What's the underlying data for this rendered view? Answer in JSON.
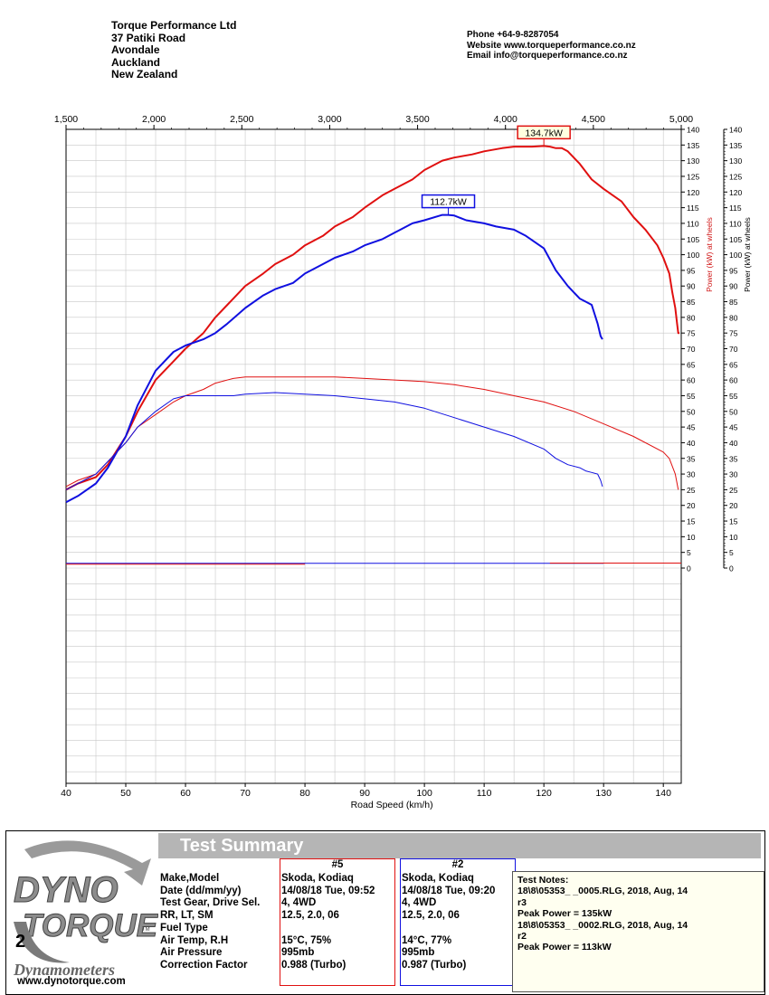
{
  "header": {
    "company": [
      "Torque Performance Ltd",
      "37 Patiki Road",
      "Avondale",
      "Auckland",
      "New Zealand"
    ],
    "contact": [
      "Phone +64-9-8287054",
      "Website  www.torqueperformance.co.nz",
      "Email  info@torqueperformance.co.nz"
    ]
  },
  "chart_data": {
    "type": "line",
    "title": "",
    "xlabel": "Road Speed (km/h)",
    "xlim": [
      40,
      143
    ],
    "x_ticks": [
      "40",
      "50",
      "60",
      "70",
      "80",
      "90",
      "100",
      "110",
      "120",
      "130",
      "140"
    ],
    "top_axis": {
      "ticks": [
        "1,500",
        "2,000",
        "2,500",
        "3,000",
        "3,500",
        "4,000",
        "4,500",
        "5,000"
      ],
      "range": [
        1500,
        5000
      ]
    },
    "y_left": {
      "ylabel": "Power (kW) at wheels",
      "ylim": [
        0,
        140
      ],
      "color": "#d01818"
    },
    "y_right": {
      "ylabel": "Power (kW) at wheels",
      "ylim": [
        0,
        140
      ]
    },
    "y_ticks": [
      "0",
      "5",
      "10",
      "15",
      "20",
      "25",
      "30",
      "35",
      "40",
      "45",
      "50",
      "55",
      "60",
      "65",
      "70",
      "75",
      "80",
      "85",
      "90",
      "95",
      "100",
      "105",
      "110",
      "115",
      "120",
      "125",
      "130",
      "135",
      "140"
    ],
    "grid": true,
    "series": [
      {
        "color": "#e01010",
        "width": 2,
        "x": [
          40,
          42,
          45,
          47,
          50,
          52,
          55,
          58,
          60,
          63,
          65,
          67,
          70,
          73,
          75,
          78,
          80,
          83,
          85,
          88,
          90,
          93,
          95,
          98,
          100,
          103,
          105,
          108,
          110,
          113,
          115,
          118,
          120,
          121,
          122,
          123,
          124,
          126,
          128,
          130,
          133,
          135,
          137,
          139,
          140,
          141,
          141.5,
          142,
          142.3,
          142.5,
          142.7
        ],
        "y": [
          25,
          27,
          29,
          33,
          42,
          50,
          60,
          66,
          70,
          75,
          80,
          84,
          90,
          94,
          97,
          100,
          103,
          106,
          109,
          112,
          115,
          119,
          121,
          124,
          127,
          130,
          131,
          132,
          133,
          134,
          134.5,
          134.5,
          134.7,
          134.5,
          134,
          134,
          133,
          129,
          124,
          121,
          117,
          112,
          108,
          103,
          99,
          94,
          88,
          83,
          78,
          75,
          75
        ]
      },
      {
        "color": "#1010e0",
        "width": 2,
        "x": [
          40,
          42,
          45,
          47,
          50,
          52,
          55,
          58,
          60,
          63,
          65,
          67,
          70,
          73,
          75,
          78,
          80,
          83,
          85,
          88,
          90,
          93,
          95,
          98,
          100,
          103,
          104,
          105,
          107,
          110,
          112,
          115,
          117,
          120,
          122,
          124,
          126,
          127,
          128,
          129,
          129.5,
          129.8
        ],
        "y": [
          21,
          23,
          27,
          32,
          42,
          52,
          63,
          69,
          71,
          73,
          75,
          78,
          83,
          87,
          89,
          91,
          94,
          97,
          99,
          101,
          103,
          105,
          107,
          110,
          111,
          112.7,
          112.7,
          112.5,
          111,
          110,
          109,
          108,
          106,
          102,
          95,
          90,
          86,
          85,
          84,
          78,
          74,
          73
        ]
      },
      {
        "color": "#e01010",
        "width": 1,
        "x": [
          40,
          42,
          45,
          48,
          50,
          52,
          55,
          58,
          60,
          63,
          65,
          68,
          70,
          75,
          80,
          85,
          90,
          95,
          100,
          105,
          110,
          115,
          120,
          125,
          130,
          135,
          140,
          141,
          142,
          142.5
        ],
        "y": [
          26,
          28,
          30,
          36,
          40,
          45,
          49,
          53,
          55,
          57,
          59,
          60.5,
          61,
          61,
          61,
          61,
          60.5,
          60,
          59.5,
          58.5,
          57,
          55,
          53,
          50,
          46,
          42,
          37,
          35,
          30,
          25
        ]
      },
      {
        "color": "#1010e0",
        "width": 1,
        "x": [
          40,
          42,
          45,
          48,
          50,
          52,
          55,
          58,
          60,
          63,
          65,
          68,
          70,
          75,
          80,
          85,
          90,
          95,
          100,
          105,
          110,
          115,
          120,
          122,
          124,
          126,
          127,
          128,
          129,
          129.5,
          129.8
        ],
        "y": [
          25,
          27,
          30,
          36,
          40,
          45,
          50,
          54,
          55,
          55,
          55,
          55,
          55.5,
          56,
          55.5,
          55,
          54,
          53,
          51,
          48,
          45,
          42,
          38,
          35,
          33,
          32,
          31,
          30.5,
          30,
          28,
          26
        ]
      },
      {
        "color": "#1010e0",
        "width": 1,
        "x": [
          40,
          130
        ],
        "y": [
          1.5,
          1.5
        ]
      },
      {
        "color": "#e01010",
        "width": 1,
        "x": [
          40,
          80
        ],
        "y": [
          1.2,
          1.2
        ]
      },
      {
        "color": "#e01010",
        "width": 1,
        "x": [
          121,
          143
        ],
        "y": [
          1.6,
          1.6
        ]
      }
    ],
    "annotations": [
      {
        "text": "134.7kW",
        "x": 120,
        "y": 134.7,
        "color": "#e01010",
        "background": "#ffffe0"
      },
      {
        "text": "112.7kW",
        "x": 104,
        "y": 112.7,
        "color": "#1010e0",
        "background": "#ffffff"
      }
    ]
  },
  "summary": {
    "title": "Test Summary",
    "labels": [
      "Make,Model",
      "Date (dd/mm/yy)",
      "Test Gear, Drive Sel.",
      "RR, LT, SM",
      "Fuel Type",
      "Air Temp, R.H",
      "Air Pressure",
      "Correction Factor"
    ],
    "runs": [
      {
        "header": "#5",
        "color": "#e01010",
        "values": [
          "Skoda, Kodiaq",
          "14/08/18 Tue, 09:52",
          "4, 4WD",
          "12.5,     2.0,    06",
          "",
          "15°C,       75%",
          "995mb",
          "0.988 (Turbo)"
        ]
      },
      {
        "header": "#2",
        "color": "#1010e0",
        "values": [
          "Skoda, Kodiaq",
          "14/08/18 Tue, 09:20",
          "4, 4WD",
          "12.5,     2.0,    06",
          "",
          "14°C,       77%",
          "995mb",
          "0.987 (Turbo)"
        ]
      }
    ],
    "notes": [
      "Test Notes:",
      "18\\8\\05353_            _0005.RLG, 2018, Aug, 14",
      "r3",
      "Peak Power = 135kW",
      "18\\8\\05353_            _0002.RLG, 2018, Aug, 14",
      "r2",
      "Peak Power = 113kW"
    ]
  },
  "logo": {
    "line1": "DYNO",
    "line2": "TORQUE",
    "badge": "2",
    "tagline": "Dynamometers",
    "tm": "TM",
    "website": "www.dynotorque.com"
  }
}
